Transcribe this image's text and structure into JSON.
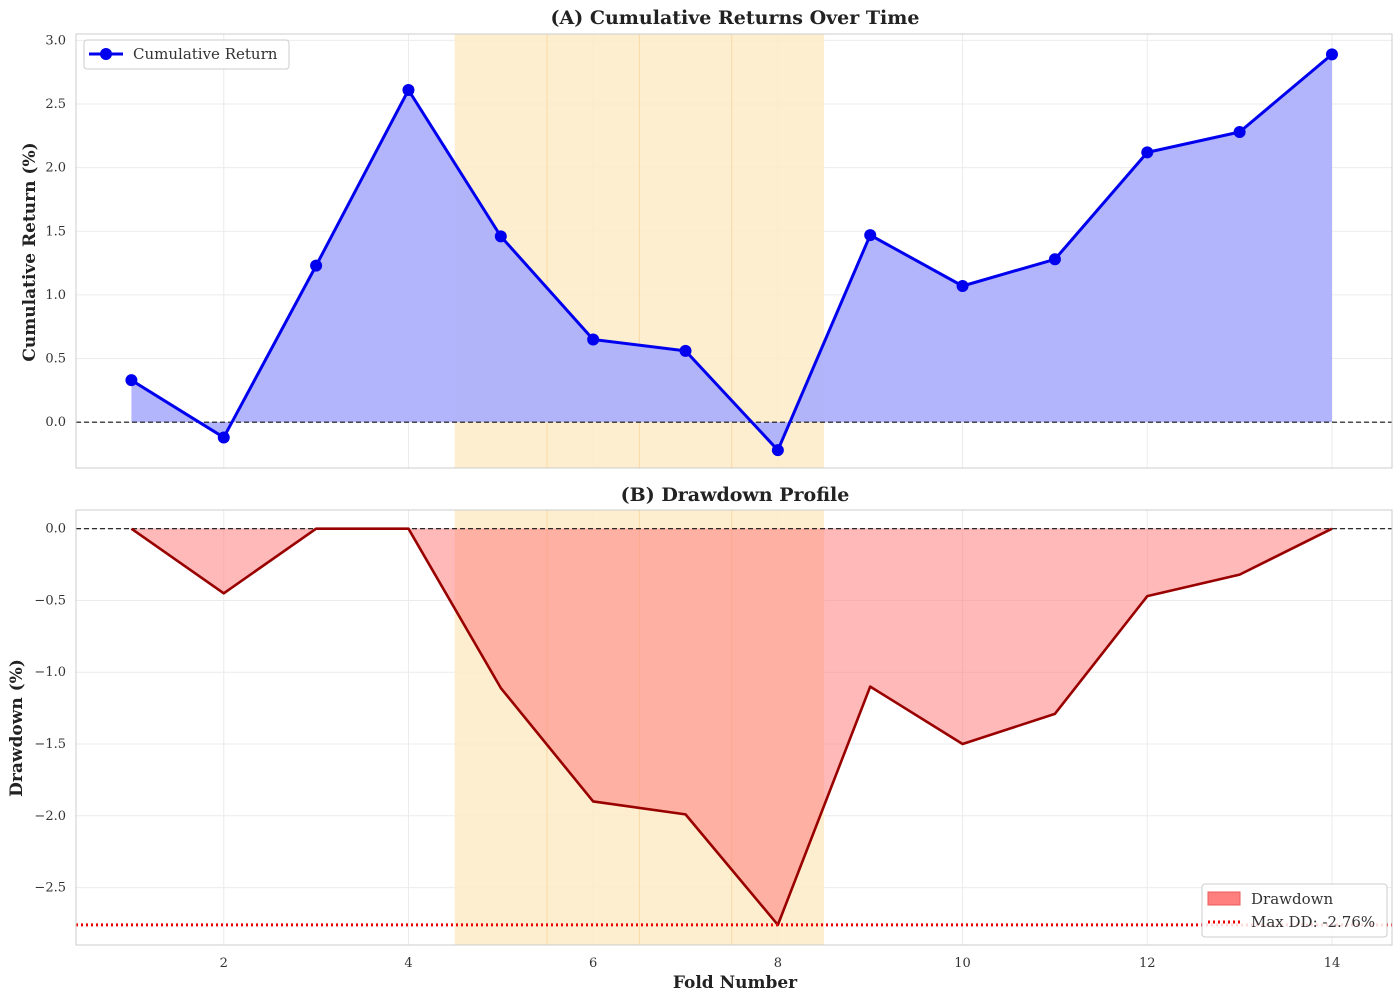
{
  "chart_data": [
    {
      "type": "line",
      "panel": "A",
      "title": "(A) Cumulative Returns Over Time",
      "xlabel": "",
      "ylabel": "Cumulative Return (%)",
      "x": [
        1,
        2,
        3,
        4,
        5,
        6,
        7,
        8,
        9,
        10,
        11,
        12,
        13,
        14
      ],
      "xlim": [
        0.4,
        14.65
      ],
      "ylim": [
        -0.36,
        3.05
      ],
      "yticks": [
        0.0,
        0.5,
        1.0,
        1.5,
        2.0,
        2.5,
        3.0
      ],
      "ytick_labels": [
        "0.0",
        "0.5",
        "1.0",
        "1.5",
        "2.0",
        "2.5",
        "3.0"
      ],
      "grid": true,
      "reference_line": 0.0,
      "highlight_region": [
        4.5,
        8.5
      ],
      "highlight_dividers": [
        5.5,
        6.5,
        7.5
      ],
      "legend_position": "top-left",
      "series": [
        {
          "name": "Cumulative Return",
          "values": [
            0.33,
            -0.12,
            1.23,
            2.61,
            1.46,
            0.65,
            0.56,
            -0.22,
            1.47,
            1.07,
            1.28,
            2.12,
            2.28,
            2.89
          ],
          "color": "#0000ee",
          "fill_color": "#aeb0fc"
        }
      ]
    },
    {
      "type": "area",
      "panel": "B",
      "title": "(B) Drawdown Profile",
      "xlabel": "Fold Number",
      "ylabel": "Drawdown (%)",
      "x": [
        1,
        2,
        3,
        4,
        5,
        6,
        7,
        8,
        9,
        10,
        11,
        12,
        13,
        14
      ],
      "xlim": [
        0.4,
        14.65
      ],
      "ylim": [
        -2.9,
        0.13
      ],
      "xticks": [
        2,
        4,
        6,
        8,
        10,
        12,
        14
      ],
      "xtick_labels": [
        "2",
        "4",
        "6",
        "8",
        "10",
        "12",
        "14"
      ],
      "yticks": [
        0.0,
        -0.5,
        -1.0,
        -1.5,
        -2.0,
        -2.5
      ],
      "ytick_labels": [
        "0.0",
        "−0.5",
        "−1.0",
        "−1.5",
        "−2.0",
        "−2.5"
      ],
      "grid": true,
      "reference_line": 0.0,
      "max_dd_value": -2.76,
      "highlight_region": [
        4.5,
        8.5
      ],
      "highlight_dividers": [
        5.5,
        6.5,
        7.5
      ],
      "legend_position": "bottom-right",
      "legend_entries": [
        "Drawdown",
        "Max DD: -2.76%"
      ],
      "series": [
        {
          "name": "Drawdown",
          "values": [
            0.0,
            -0.45,
            0.0,
            0.0,
            -1.11,
            -1.9,
            -1.99,
            -2.76,
            -1.1,
            -1.5,
            -1.29,
            -0.47,
            -0.32,
            0.0
          ],
          "color": "#990000",
          "fill_color": "#ff7f7f"
        }
      ],
      "colors": {
        "max_dd_line": "#ee0000",
        "highlight": "#fdebc7",
        "highlight_divider": "#fad9a3"
      }
    }
  ]
}
